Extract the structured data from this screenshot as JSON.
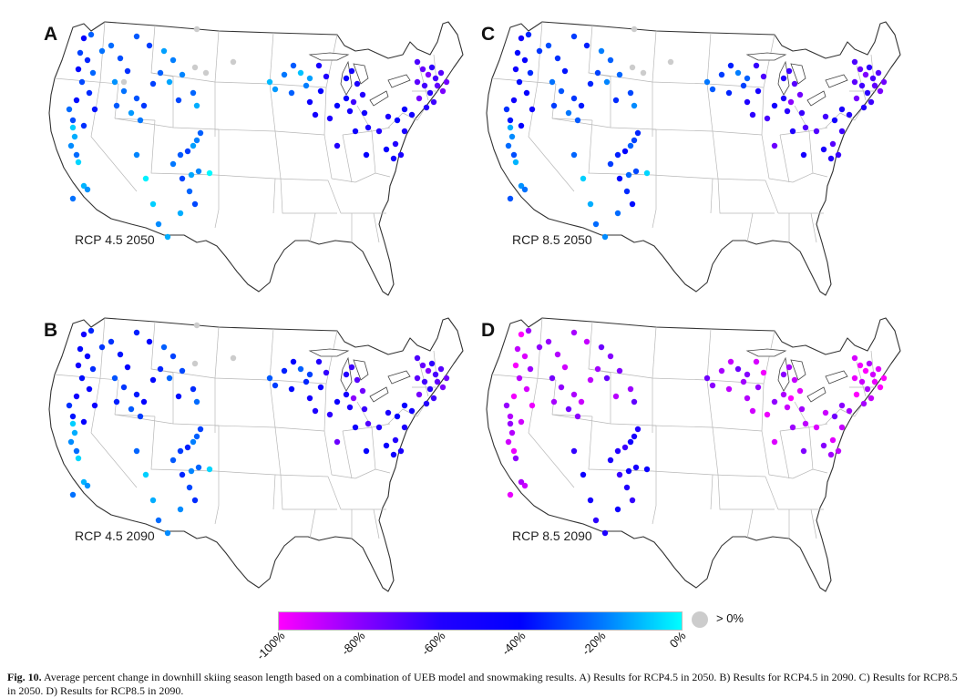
{
  "panels": [
    {
      "id": "A",
      "label": "RCP 4.5 2050",
      "scenario": "RCP4.5",
      "year": 2050,
      "regions": {
        "pnw": -30,
        "idaho": -25,
        "montana": -20,
        "california": -15,
        "colorado": -20,
        "southwest": -10,
        "minnesota": -15,
        "michigan": -55,
        "wisconsin": -50,
        "newengland": -70,
        "midatlantic": -50,
        "gray_count": 5
      }
    },
    {
      "id": "C",
      "label": "RCP 8.5 2050",
      "scenario": "RCP8.5",
      "year": 2050,
      "regions": {
        "pnw": -40,
        "idaho": -30,
        "montana": -25,
        "california": -20,
        "colorado": -30,
        "southwest": -15,
        "minnesota": -25,
        "michigan": -70,
        "wisconsin": -60,
        "newengland": -70,
        "midatlantic": -60,
        "gray_count": 4
      }
    },
    {
      "id": "B",
      "label": "RCP 4.5 2090",
      "scenario": "RCP4.5",
      "year": 2090,
      "regions": {
        "pnw": -40,
        "idaho": -35,
        "montana": -30,
        "california": -15,
        "colorado": -25,
        "southwest": -15,
        "minnesota": -30,
        "michigan": -70,
        "wisconsin": -55,
        "newengland": -70,
        "midatlantic": -50,
        "gray_count": 3
      }
    },
    {
      "id": "D",
      "label": "RCP 8.5 2090",
      "scenario": "RCP8.5",
      "year": 2090,
      "regions": {
        "pnw": -90,
        "idaho": -85,
        "montana": -80,
        "california": -90,
        "colorado": -55,
        "southwest": -55,
        "minnesota": -80,
        "michigan": -90,
        "wisconsin": -90,
        "newengland": -95,
        "midatlantic": -85,
        "gray_count": 0
      }
    }
  ],
  "colorbar": {
    "ticks": [
      "-100%",
      "-80%",
      "-60%",
      "-40%",
      "-20%",
      "0%"
    ],
    "stops": [
      "#ff00ff",
      "#8a00ff",
      "#2200ff",
      "#0000ff",
      "#0077ff",
      "#00ffff"
    ],
    "min": -100,
    "max": 0,
    "gray_label": "> 0%",
    "gray_color": "#cccccc"
  },
  "caption": {
    "label": "Fig. 10.",
    "text": "Average percent change in downhill skiing season length based on a combination of UEB model and snowmaking results. A) Results for RCP4.5 in 2050. B) Results for RCP4.5 in 2090. C) Results for RCP8.5 in 2050. D) Results for RCP8.5 in 2090."
  }
}
